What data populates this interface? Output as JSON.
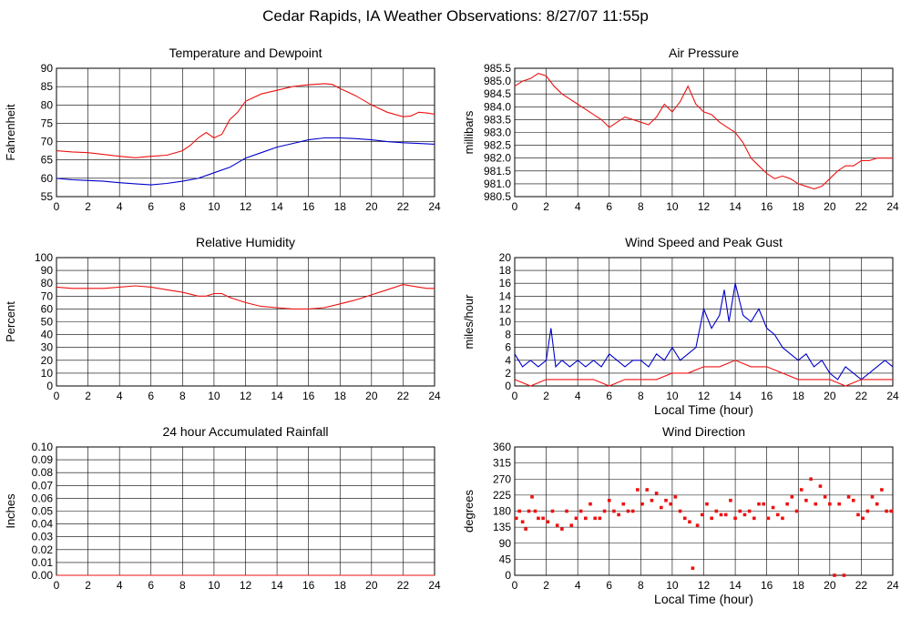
{
  "title": "Cedar Rapids, IA Weather Observations: 8/27/07 11:55p",
  "colors": {
    "red": "#ee1111",
    "blue": "#0000cc",
    "grid": "#000000",
    "background": "#ffffff"
  },
  "chart_data": [
    {
      "id": "temp",
      "type": "line",
      "title": "Temperature and Dewpoint",
      "ylabel": "Fahrenheit",
      "xlabel": "",
      "xlim": [
        0,
        24
      ],
      "ylim": [
        55,
        90
      ],
      "xticks": [
        "0",
        "2",
        "4",
        "6",
        "8",
        "10",
        "12",
        "14",
        "16",
        "18",
        "20",
        "22",
        "24"
      ],
      "yticks": [
        "55",
        "60",
        "65",
        "70",
        "75",
        "80",
        "85",
        "90"
      ],
      "grid": true,
      "series": [
        {
          "color": "#ee1111",
          "x": [
            0,
            1,
            2,
            3,
            4,
            5,
            6,
            7,
            8,
            8.5,
            9,
            9.5,
            10,
            10.5,
            11,
            11.5,
            12,
            13,
            14,
            15,
            16,
            17,
            17.5,
            18,
            19,
            20,
            21,
            22,
            22.5,
            23,
            23.5,
            24
          ],
          "values": [
            67.5,
            67.2,
            67,
            66.5,
            66,
            65.6,
            66,
            66.3,
            67.5,
            69,
            71,
            72.5,
            71,
            72,
            76,
            78,
            81,
            83,
            84,
            85,
            85.5,
            85.8,
            85.6,
            84.5,
            82.5,
            80,
            78,
            76.8,
            77,
            78,
            77.8,
            77.5
          ]
        },
        {
          "color": "#0000cc",
          "x": [
            0,
            1,
            2,
            3,
            4,
            5,
            6,
            7,
            8,
            9,
            10,
            11,
            12,
            13,
            14,
            15,
            16,
            17,
            18,
            19,
            20,
            21,
            22,
            23,
            24
          ],
          "values": [
            60,
            59.6,
            59.4,
            59.2,
            58.8,
            58.5,
            58.2,
            58.6,
            59.2,
            60,
            61.5,
            63,
            65.5,
            67,
            68.5,
            69.5,
            70.5,
            71,
            71,
            70.8,
            70.5,
            70,
            69.7,
            69.5,
            69.3
          ]
        }
      ]
    },
    {
      "id": "pressure",
      "type": "line",
      "title": "Air Pressure",
      "ylabel": "millibars",
      "xlabel": "",
      "xlim": [
        0,
        24
      ],
      "ylim": [
        980.5,
        985.5
      ],
      "xticks": [
        "0",
        "2",
        "4",
        "6",
        "8",
        "10",
        "12",
        "14",
        "16",
        "18",
        "20",
        "22",
        "24"
      ],
      "yticks": [
        "980.5",
        "981.0",
        "981.5",
        "982.0",
        "982.5",
        "983.0",
        "983.5",
        "984.0",
        "984.5",
        "985.0",
        "985.5"
      ],
      "grid": true,
      "series": [
        {
          "color": "#ee1111",
          "x": [
            0,
            0.5,
            1,
            1.5,
            2,
            2.5,
            3,
            3.5,
            4,
            4.5,
            5,
            5.5,
            6,
            6.5,
            7,
            7.5,
            8,
            8.5,
            9,
            9.5,
            10,
            10.5,
            11,
            11.5,
            12,
            12.5,
            13,
            13.5,
            14,
            14.5,
            15,
            15.5,
            16,
            16.5,
            17,
            17.5,
            18,
            18.5,
            19,
            19.5,
            20,
            20.5,
            21,
            21.5,
            22,
            22.5,
            23,
            23.5,
            24
          ],
          "values": [
            984.8,
            985,
            985.1,
            985.3,
            985.2,
            984.8,
            984.5,
            984.3,
            984.1,
            983.9,
            983.7,
            983.5,
            983.2,
            983.4,
            983.6,
            983.5,
            983.4,
            983.3,
            983.6,
            984.1,
            983.8,
            984.2,
            984.8,
            984.1,
            983.8,
            983.7,
            983.4,
            983.2,
            983,
            982.6,
            982,
            981.7,
            981.4,
            981.2,
            981.3,
            981.2,
            981,
            980.9,
            980.8,
            980.9,
            981.2,
            981.5,
            981.7,
            981.7,
            981.9,
            981.9,
            982,
            982,
            982
          ]
        }
      ]
    },
    {
      "id": "humidity",
      "type": "line",
      "title": "Relative Humidity",
      "ylabel": "Percent",
      "xlabel": "",
      "xlim": [
        0,
        24
      ],
      "ylim": [
        0,
        100
      ],
      "xticks": [
        "0",
        "2",
        "4",
        "6",
        "8",
        "10",
        "12",
        "14",
        "16",
        "18",
        "20",
        "22",
        "24"
      ],
      "yticks": [
        "0",
        "10",
        "20",
        "30",
        "40",
        "50",
        "60",
        "70",
        "80",
        "90",
        "100"
      ],
      "grid": true,
      "series": [
        {
          "color": "#ee1111",
          "x": [
            0,
            1,
            2,
            3,
            4,
            5,
            6,
            7,
            8,
            9,
            9.5,
            10,
            10.5,
            11,
            12,
            13,
            14,
            15,
            16,
            17,
            18,
            19,
            20,
            21,
            22,
            23,
            23.5,
            24
          ],
          "values": [
            77,
            76,
            76,
            76,
            77,
            78,
            77,
            75,
            73,
            70,
            70,
            72,
            72,
            69,
            65,
            62,
            61,
            60,
            60,
            61,
            64,
            67,
            71,
            75,
            79,
            77,
            76,
            76
          ]
        }
      ]
    },
    {
      "id": "wind",
      "type": "line",
      "title": "Wind Speed and Peak Gust",
      "ylabel": "miles/hour",
      "xlabel": "Local Time (hour)",
      "xlim": [
        0,
        24
      ],
      "ylim": [
        0,
        20
      ],
      "xticks": [
        "0",
        "2",
        "4",
        "6",
        "8",
        "10",
        "12",
        "14",
        "16",
        "18",
        "20",
        "22",
        "24"
      ],
      "yticks": [
        "0",
        "2",
        "4",
        "6",
        "8",
        "10",
        "12",
        "14",
        "16",
        "18",
        "20"
      ],
      "grid": true,
      "series": [
        {
          "color": "#0000cc",
          "x": [
            0,
            0.5,
            1,
            1.5,
            2,
            2.3,
            2.6,
            3,
            3.5,
            4,
            4.5,
            5,
            5.5,
            6,
            6.5,
            7,
            7.5,
            8,
            8.5,
            9,
            9.5,
            10,
            10.5,
            11,
            11.5,
            12,
            12.5,
            13,
            13.3,
            13.6,
            14,
            14.5,
            15,
            15.5,
            16,
            16.5,
            17,
            17.5,
            18,
            18.5,
            19,
            19.5,
            20,
            20.5,
            21,
            21.5,
            22,
            22.5,
            23,
            23.5,
            24
          ],
          "values": [
            5,
            3,
            4,
            3,
            4,
            9,
            3,
            4,
            3,
            4,
            3,
            4,
            3,
            5,
            4,
            3,
            4,
            4,
            3,
            5,
            4,
            6,
            4,
            5,
            6,
            12,
            9,
            11,
            15,
            10,
            16,
            11,
            10,
            12,
            9,
            8,
            6,
            5,
            4,
            5,
            3,
            4,
            2,
            1,
            3,
            2,
            1,
            2,
            3,
            4,
            3
          ]
        },
        {
          "color": "#ee1111",
          "x": [
            0,
            1,
            2,
            3,
            4,
            5,
            6,
            7,
            8,
            9,
            10,
            11,
            12,
            13,
            14,
            15,
            16,
            17,
            18,
            19,
            20,
            21,
            22,
            23,
            24
          ],
          "values": [
            1,
            0,
            1,
            1,
            1,
            1,
            0,
            1,
            1,
            1,
            2,
            2,
            3,
            3,
            4,
            3,
            3,
            2,
            1,
            1,
            1,
            0,
            1,
            1,
            1
          ]
        }
      ]
    },
    {
      "id": "rain",
      "type": "line",
      "title": "24 hour Accumulated Rainfall",
      "ylabel": "Inches",
      "xlabel": "",
      "xlim": [
        0,
        24
      ],
      "ylim": [
        0,
        0.1
      ],
      "xticks": [
        "0",
        "2",
        "4",
        "6",
        "8",
        "10",
        "12",
        "14",
        "16",
        "18",
        "20",
        "22",
        "24"
      ],
      "yticks": [
        "0.00",
        "0.01",
        "0.02",
        "0.03",
        "0.04",
        "0.05",
        "0.06",
        "0.07",
        "0.08",
        "0.09",
        "0.10"
      ],
      "grid": true,
      "series": [
        {
          "color": "#ee1111",
          "x": [
            0,
            24
          ],
          "values": [
            0,
            0
          ]
        }
      ]
    },
    {
      "id": "winddir",
      "type": "scatter",
      "title": "Wind Direction",
      "ylabel": "degrees",
      "xlabel": "Local Time (hour)",
      "xlim": [
        0,
        24
      ],
      "ylim": [
        0,
        360
      ],
      "xticks": [
        "0",
        "2",
        "4",
        "6",
        "8",
        "10",
        "12",
        "14",
        "16",
        "18",
        "20",
        "22",
        "24"
      ],
      "yticks": [
        "0",
        "45",
        "90",
        "135",
        "180",
        "225",
        "270",
        "315",
        "360"
      ],
      "grid": true,
      "series": [
        {
          "color": "#ee1111",
          "x": [
            0.1,
            0.3,
            0.5,
            0.7,
            0.9,
            1.1,
            1.3,
            1.5,
            1.8,
            2.1,
            2.4,
            2.7,
            3.0,
            3.3,
            3.6,
            3.9,
            4.2,
            4.5,
            4.8,
            5.1,
            5.4,
            5.7,
            6.0,
            6.3,
            6.6,
            6.9,
            7.2,
            7.5,
            7.8,
            8.1,
            8.4,
            8.7,
            9.0,
            9.3,
            9.6,
            9.9,
            10.2,
            10.5,
            10.8,
            11.1,
            11.3,
            11.6,
            11.9,
            12.2,
            12.5,
            12.8,
            13.1,
            13.4,
            13.7,
            14.0,
            14.3,
            14.6,
            14.9,
            15.2,
            15.5,
            15.8,
            16.1,
            16.4,
            16.7,
            17.0,
            17.3,
            17.6,
            17.9,
            18.2,
            18.5,
            18.8,
            19.1,
            19.4,
            19.7,
            20.0,
            20.3,
            20.6,
            20.9,
            21.2,
            21.5,
            21.8,
            22.1,
            22.4,
            22.7,
            23.0,
            23.3,
            23.6,
            23.9
          ],
          "values": [
            160,
            180,
            150,
            130,
            180,
            220,
            180,
            160,
            160,
            150,
            180,
            140,
            130,
            180,
            140,
            160,
            180,
            160,
            200,
            160,
            160,
            180,
            210,
            180,
            170,
            200,
            180,
            180,
            240,
            200,
            240,
            210,
            230,
            190,
            210,
            200,
            220,
            180,
            160,
            150,
            20,
            140,
            170,
            200,
            160,
            180,
            170,
            170,
            210,
            160,
            180,
            170,
            180,
            160,
            200,
            200,
            160,
            190,
            170,
            160,
            200,
            220,
            180,
            240,
            210,
            270,
            200,
            250,
            220,
            200,
            0,
            200,
            0,
            220,
            210,
            170,
            160,
            180,
            220,
            200,
            240,
            180,
            180
          ]
        }
      ]
    }
  ]
}
